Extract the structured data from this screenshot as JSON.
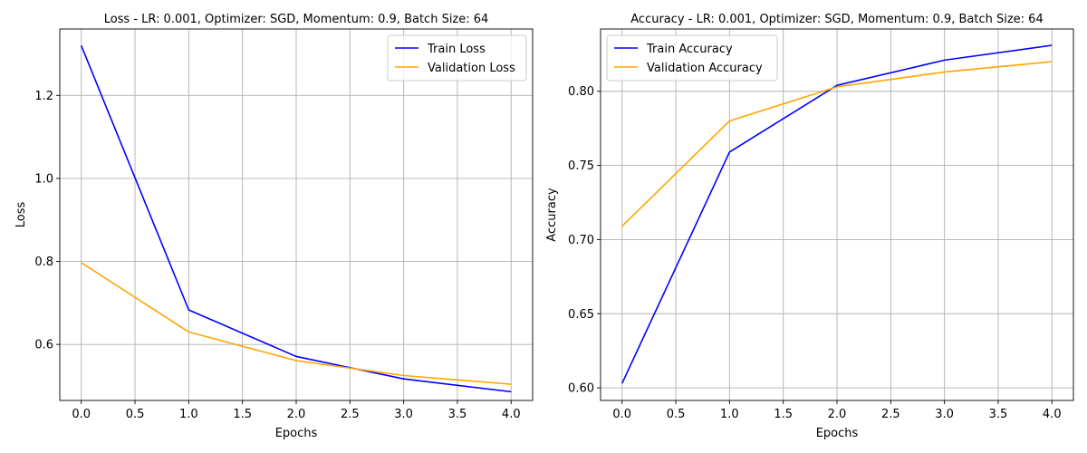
{
  "chart_data": [
    {
      "type": "line",
      "title": "Loss - LR: 0.001, Optimizer: SGD, Momentum: 0.9, Batch Size: 64",
      "xlabel": "Epochs",
      "ylabel": "Loss",
      "xlim": [
        -0.2,
        4.2
      ],
      "ylim": [
        0.465,
        1.36
      ],
      "xticks": [
        0.0,
        0.5,
        1.0,
        1.5,
        2.0,
        2.5,
        3.0,
        3.5,
        4.0
      ],
      "xtick_labels": [
        "0.0",
        "0.5",
        "1.0",
        "1.5",
        "2.0",
        "2.5",
        "3.0",
        "3.5",
        "4.0"
      ],
      "yticks": [
        0.6,
        0.8,
        1.0,
        1.2
      ],
      "ytick_labels": [
        "0.6",
        "0.8",
        "1.0",
        "1.2"
      ],
      "grid": true,
      "legend_position": "top-right",
      "x": [
        0,
        1,
        2,
        3,
        4
      ],
      "series": [
        {
          "name": "Train Loss",
          "color": "#0000ff",
          "values": [
            1.32,
            0.683,
            0.571,
            0.517,
            0.486
          ]
        },
        {
          "name": "Validation Loss",
          "color": "#ffa500",
          "values": [
            0.797,
            0.63,
            0.561,
            0.525,
            0.504
          ]
        }
      ]
    },
    {
      "type": "line",
      "title": "Accuracy - LR: 0.001, Optimizer: SGD, Momentum: 0.9, Batch Size: 64",
      "xlabel": "Epochs",
      "ylabel": "Accuracy",
      "xlim": [
        -0.2,
        4.2
      ],
      "ylim": [
        0.5915,
        0.842
      ],
      "xticks": [
        0.0,
        0.5,
        1.0,
        1.5,
        2.0,
        2.5,
        3.0,
        3.5,
        4.0
      ],
      "xtick_labels": [
        "0.0",
        "0.5",
        "1.0",
        "1.5",
        "2.0",
        "2.5",
        "3.0",
        "3.5",
        "4.0"
      ],
      "yticks": [
        0.6,
        0.65,
        0.7,
        0.75,
        0.8
      ],
      "ytick_labels": [
        "0.60",
        "0.65",
        "0.70",
        "0.75",
        "0.80"
      ],
      "grid": true,
      "legend_position": "top-left",
      "x": [
        0,
        1,
        2,
        3,
        4
      ],
      "series": [
        {
          "name": "Train Accuracy",
          "color": "#0000ff",
          "values": [
            0.603,
            0.759,
            0.804,
            0.821,
            0.831
          ]
        },
        {
          "name": "Validation Accuracy",
          "color": "#ffa500",
          "values": [
            0.709,
            0.78,
            0.803,
            0.813,
            0.82
          ]
        }
      ]
    }
  ]
}
